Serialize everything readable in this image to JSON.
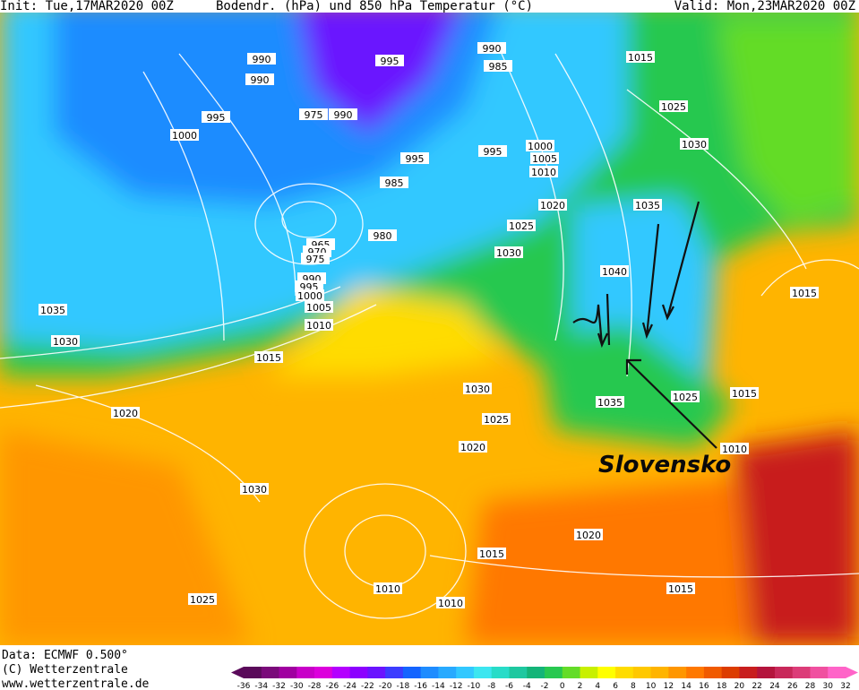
{
  "header": {
    "init": "Init: Tue,17MAR2020 00Z",
    "title": "Bodendr. (hPa) und 850 hPa Temperatur (°C)",
    "valid": "Valid: Mon,23MAR2020 00Z"
  },
  "isobar_labels": [
    "990",
    "990",
    "995",
    "990",
    "985",
    "1015",
    "975",
    "990",
    "995",
    "1000",
    "1025",
    "1030",
    "995",
    "995",
    "1000",
    "1005",
    "1010",
    "985",
    "1020",
    "1035",
    "1025",
    "980",
    "965",
    "970",
    "975",
    "1030",
    "1040",
    "1015",
    "990",
    "995",
    "1000",
    "1005",
    "1035",
    "1010",
    "1030",
    "1015",
    "1015",
    "1030",
    "1035",
    "1025",
    "1020",
    "1025",
    "1020",
    "1010",
    "1030",
    "1020",
    "1015",
    "1010",
    "1015",
    "1025",
    "1010"
  ],
  "annotation": "Slovensko",
  "footer": {
    "data": "Data: ECMWF  0.500°",
    "copyright": "(C) Wetterzentrale",
    "url": "www.wetterzentrale.de"
  },
  "scale": {
    "labels": [
      "-36",
      "-34",
      "-32",
      "-30",
      "-28",
      "-26",
      "-24",
      "-22",
      "-20",
      "-18",
      "-16",
      "-14",
      "-12",
      "-10",
      "-8",
      "-6",
      "-4",
      "-2",
      "0",
      "2",
      "4",
      "6",
      "8",
      "10",
      "12",
      "14",
      "16",
      "18",
      "20",
      "22",
      "24",
      "26",
      "28",
      "30",
      "32"
    ],
    "colors": [
      "#5a0a5a",
      "#7a0a7a",
      "#a000a0",
      "#c800c8",
      "#dc00dc",
      "#b400ff",
      "#8c00ff",
      "#6a14ff",
      "#3c3cff",
      "#1464ff",
      "#1e8cff",
      "#28aaff",
      "#32c8ff",
      "#3ce6f0",
      "#28dcc8",
      "#1ec8a0",
      "#14b478",
      "#28c850",
      "#64dc28",
      "#c8f000",
      "#ffff00",
      "#ffdc00",
      "#ffc800",
      "#ffb400",
      "#ff9600",
      "#ff7800",
      "#f05a00",
      "#dc3c00",
      "#c81e1e",
      "#b4143c",
      "#c8285a",
      "#dc3c78",
      "#f050a0",
      "#ff64c8"
    ]
  }
}
